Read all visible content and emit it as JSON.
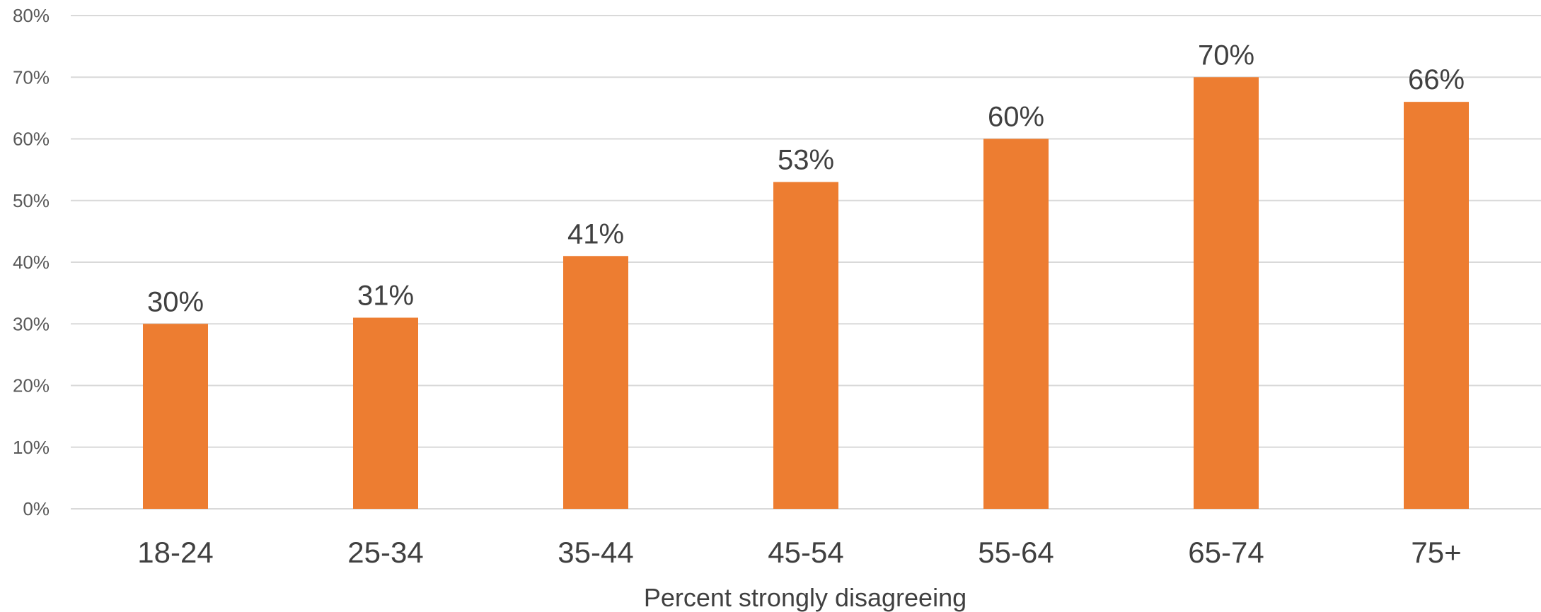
{
  "chart_data": {
    "type": "bar",
    "categories": [
      "18-24",
      "25-34",
      "35-44",
      "45-54",
      "55-64",
      "65-74",
      "75+"
    ],
    "values": [
      30,
      31,
      41,
      53,
      60,
      70,
      66
    ],
    "value_labels": [
      "30%",
      "31%",
      "41%",
      "53%",
      "60%",
      "70%",
      "66%"
    ],
    "xlabel": "Percent strongly disagreeing",
    "ylabel": "",
    "ylim": [
      0,
      80
    ],
    "yticks": [
      0,
      10,
      20,
      30,
      40,
      50,
      60,
      70,
      80
    ],
    "ytick_labels": [
      "0%",
      "10%",
      "20%",
      "30%",
      "40%",
      "50%",
      "60%",
      "70%",
      "80%"
    ],
    "grid": true,
    "colors": {
      "bar": "#ED7D31",
      "grid": "#D9D9D9",
      "text": "#404040"
    }
  }
}
